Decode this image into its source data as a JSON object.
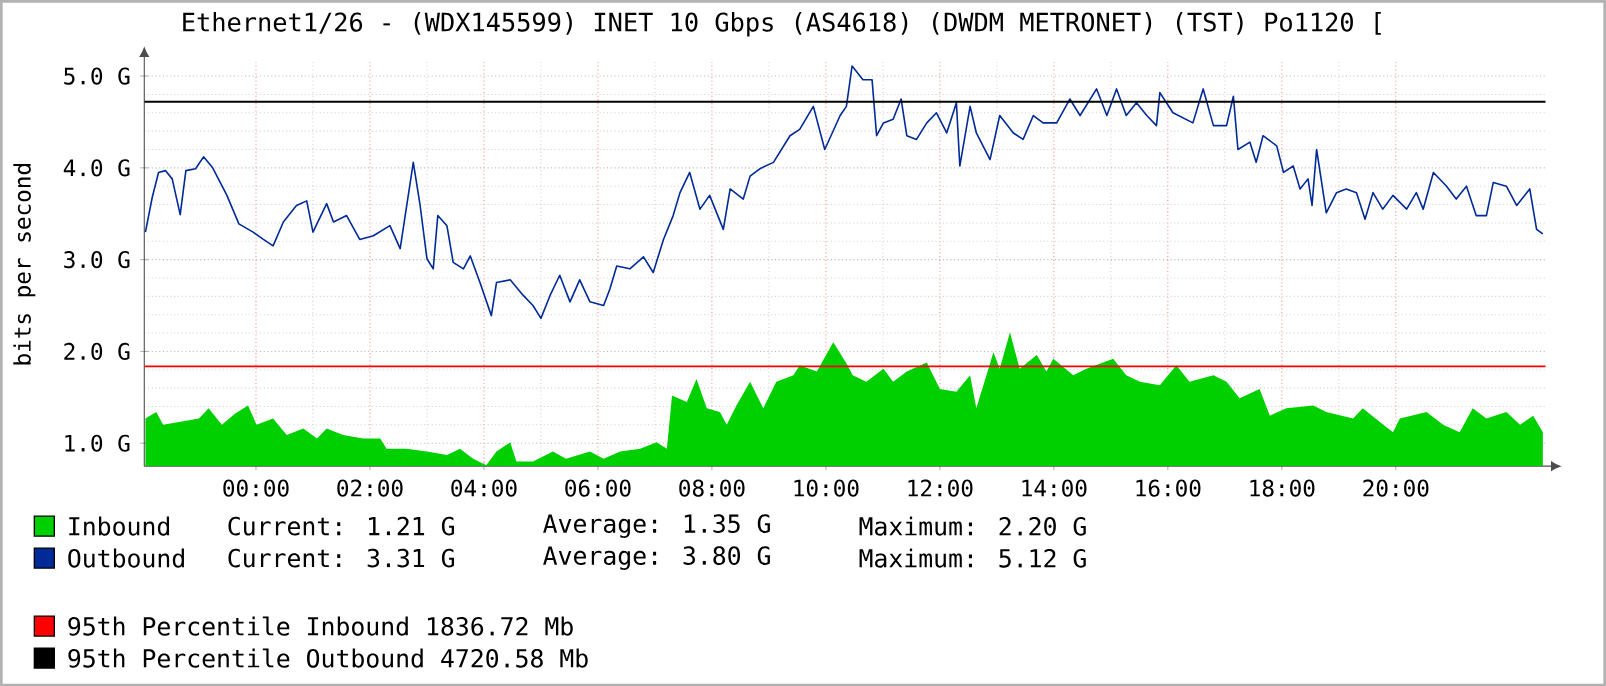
{
  "chart_data": {
    "type": "area",
    "title": "Ethernet1/26 - (WDX145599) INET 10 Gbps (AS4618) (DWDM METRONET) (TST) Po1120 [",
    "ylabel": "bits per second",
    "xlim": [
      -1.96,
      22.63
    ],
    "ylim": [
      0.75,
      5.15
    ],
    "xticks": [
      {
        "value": 0,
        "label": "00:00"
      },
      {
        "value": 2,
        "label": "02:00"
      },
      {
        "value": 4,
        "label": "04:00"
      },
      {
        "value": 6,
        "label": "06:00"
      },
      {
        "value": 8,
        "label": "08:00"
      },
      {
        "value": 10,
        "label": "10:00"
      },
      {
        "value": 12,
        "label": "12:00"
      },
      {
        "value": 14,
        "label": "14:00"
      },
      {
        "value": 16,
        "label": "16:00"
      },
      {
        "value": 18,
        "label": "18:00"
      },
      {
        "value": 20,
        "label": "20:00"
      }
    ],
    "yticks": [
      {
        "value": 1,
        "label": "1.0 G"
      },
      {
        "value": 2,
        "label": "2.0 G"
      },
      {
        "value": 3,
        "label": "3.0 G"
      },
      {
        "value": 4,
        "label": "4.0 G"
      },
      {
        "value": 5,
        "label": "5.0 G"
      }
    ],
    "grid": true,
    "legend": "bottom",
    "series": [
      {
        "name": "Inbound",
        "color": "#00cf00",
        "x": [
          -1.94,
          -1.75,
          -1.63,
          -1.35,
          -1.0,
          -0.83,
          -0.6,
          -0.37,
          -0.14,
          0.01,
          0.3,
          0.54,
          0.83,
          1.07,
          1.24,
          1.53,
          1.88,
          2.18,
          2.29,
          2.64,
          3.0,
          3.35,
          3.58,
          3.81,
          4.04,
          4.22,
          4.46,
          4.57,
          4.86,
          5.21,
          5.44,
          5.86,
          6.1,
          6.39,
          6.74,
          7.03,
          7.21,
          7.3,
          7.56,
          7.73,
          7.91,
          8.14,
          8.26,
          8.43,
          8.67,
          8.9,
          9.13,
          9.43,
          9.54,
          9.84,
          10.13,
          10.38,
          10.47,
          10.71,
          11.01,
          11.18,
          11.42,
          11.77,
          12.0,
          12.29,
          12.53,
          12.64,
          12.94,
          13.05,
          13.23,
          13.4,
          13.7,
          13.87,
          13.99,
          14.34,
          14.57,
          15.04,
          15.27,
          15.51,
          15.86,
          16.15,
          16.38,
          16.8,
          17.03,
          17.26,
          17.61,
          17.79,
          18.08,
          18.55,
          18.78,
          19.25,
          19.42,
          19.72,
          19.95,
          20.07,
          20.54,
          20.83,
          21.12,
          21.35,
          21.59,
          21.94,
          22.18,
          22.41,
          22.58
        ],
        "values": [
          1.27,
          1.34,
          1.2,
          1.23,
          1.27,
          1.38,
          1.2,
          1.32,
          1.41,
          1.2,
          1.27,
          1.09,
          1.16,
          1.05,
          1.16,
          1.09,
          1.05,
          1.05,
          0.94,
          0.94,
          0.91,
          0.87,
          0.94,
          0.83,
          0.76,
          0.91,
          1.01,
          0.8,
          0.8,
          0.91,
          0.83,
          0.91,
          0.83,
          0.91,
          0.94,
          1.01,
          0.94,
          1.52,
          1.45,
          1.7,
          1.38,
          1.34,
          1.2,
          1.41,
          1.67,
          1.38,
          1.67,
          1.74,
          1.85,
          1.78,
          2.1,
          1.85,
          1.74,
          1.67,
          1.81,
          1.67,
          1.78,
          1.88,
          1.59,
          1.56,
          1.74,
          1.38,
          1.99,
          1.81,
          2.21,
          1.81,
          1.96,
          1.78,
          1.92,
          1.74,
          1.81,
          1.92,
          1.74,
          1.67,
          1.63,
          1.85,
          1.67,
          1.74,
          1.67,
          1.49,
          1.59,
          1.3,
          1.38,
          1.41,
          1.34,
          1.27,
          1.38,
          1.23,
          1.12,
          1.27,
          1.34,
          1.2,
          1.12,
          1.38,
          1.27,
          1.34,
          1.2,
          1.3,
          1.12
        ]
      },
      {
        "name": "Outbound",
        "type": "line",
        "color": "#002a97",
        "x": [
          -1.94,
          -1.82,
          -1.71,
          -1.59,
          -1.47,
          -1.33,
          -1.23,
          -1.06,
          -0.92,
          -0.76,
          -0.51,
          -0.3,
          -0.05,
          0.13,
          0.3,
          0.48,
          0.71,
          0.89,
          1.0,
          1.24,
          1.36,
          1.59,
          1.82,
          2.06,
          2.35,
          2.53,
          2.76,
          2.88,
          3.0,
          3.11,
          3.19,
          3.35,
          3.46,
          3.64,
          3.76,
          3.93,
          4.13,
          4.22,
          4.46,
          4.69,
          4.86,
          5.0,
          5.16,
          5.33,
          5.51,
          5.68,
          5.86,
          6.1,
          6.21,
          6.33,
          6.56,
          6.8,
          6.97,
          7.15,
          7.32,
          7.44,
          7.61,
          7.79,
          7.96,
          8.2,
          8.32,
          8.55,
          8.67,
          8.84,
          9.08,
          9.37,
          9.54,
          9.78,
          9.98,
          10.25,
          10.36,
          10.46,
          10.65,
          10.81,
          10.89,
          11.01,
          11.18,
          11.32,
          11.42,
          11.59,
          11.77,
          11.94,
          12.12,
          12.29,
          12.35,
          12.53,
          12.64,
          12.88,
          13.05,
          13.29,
          13.46,
          13.64,
          13.81,
          14.05,
          14.28,
          14.46,
          14.75,
          14.93,
          15.1,
          15.27,
          15.45,
          15.63,
          15.8,
          15.86,
          16.09,
          16.44,
          16.62,
          16.8,
          17.03,
          17.15,
          17.23,
          17.44,
          17.55,
          17.67,
          17.91,
          18.03,
          18.2,
          18.32,
          18.46,
          18.53,
          18.61,
          18.78,
          18.96,
          19.13,
          19.31,
          19.46,
          19.6,
          19.77,
          19.95,
          20.19,
          20.36,
          20.48,
          20.66,
          20.89,
          21.06,
          21.24,
          21.41,
          21.59,
          21.71,
          21.94,
          22.12,
          22.35,
          22.47,
          22.58
        ],
        "values": [
          3.3,
          3.68,
          3.95,
          3.97,
          3.88,
          3.49,
          3.97,
          3.99,
          4.12,
          4.0,
          3.7,
          3.39,
          3.3,
          3.22,
          3.15,
          3.41,
          3.59,
          3.64,
          3.3,
          3.61,
          3.41,
          3.48,
          3.22,
          3.26,
          3.37,
          3.12,
          4.06,
          3.59,
          3.01,
          2.9,
          3.48,
          3.37,
          2.97,
          2.9,
          3.04,
          2.75,
          2.39,
          2.75,
          2.78,
          2.61,
          2.5,
          2.36,
          2.61,
          2.83,
          2.54,
          2.78,
          2.54,
          2.5,
          2.68,
          2.93,
          2.9,
          3.03,
          2.86,
          3.22,
          3.48,
          3.73,
          3.95,
          3.55,
          3.7,
          3.33,
          3.77,
          3.66,
          3.91,
          3.99,
          4.06,
          4.35,
          4.42,
          4.67,
          4.2,
          4.57,
          4.67,
          5.11,
          4.96,
          4.96,
          4.35,
          4.49,
          4.53,
          4.75,
          4.35,
          4.31,
          4.49,
          4.6,
          4.38,
          4.71,
          4.02,
          4.67,
          4.38,
          4.09,
          4.57,
          4.38,
          4.31,
          4.57,
          4.49,
          4.49,
          4.75,
          4.57,
          4.86,
          4.57,
          4.86,
          4.57,
          4.71,
          4.57,
          4.46,
          4.82,
          4.6,
          4.49,
          4.86,
          4.46,
          4.46,
          4.78,
          4.2,
          4.28,
          4.06,
          4.35,
          4.24,
          3.95,
          4.02,
          3.77,
          3.88,
          3.59,
          4.2,
          3.51,
          3.73,
          3.77,
          3.73,
          3.44,
          3.73,
          3.55,
          3.7,
          3.55,
          3.73,
          3.55,
          3.95,
          3.8,
          3.66,
          3.8,
          3.48,
          3.48,
          3.84,
          3.8,
          3.59,
          3.77,
          3.33,
          3.28
        ]
      }
    ],
    "ref_lines": [
      {
        "axis": "y",
        "value": 1.83672,
        "label": "95th Percentile Inbound  1836.72 Mb",
        "color": "#ff0000"
      },
      {
        "axis": "y",
        "value": 4.72058,
        "label": "95th Percentile Outbound  4720.58 Mb",
        "color": "#000000"
      }
    ],
    "annotations": [
      "Current:    1.21 G",
      "Average:    1.35 G",
      "Maximum:    2.20 G",
      "Current:    3.31 G",
      "Average:    3.80 G",
      "Maximum:    5.12 G"
    ]
  }
}
